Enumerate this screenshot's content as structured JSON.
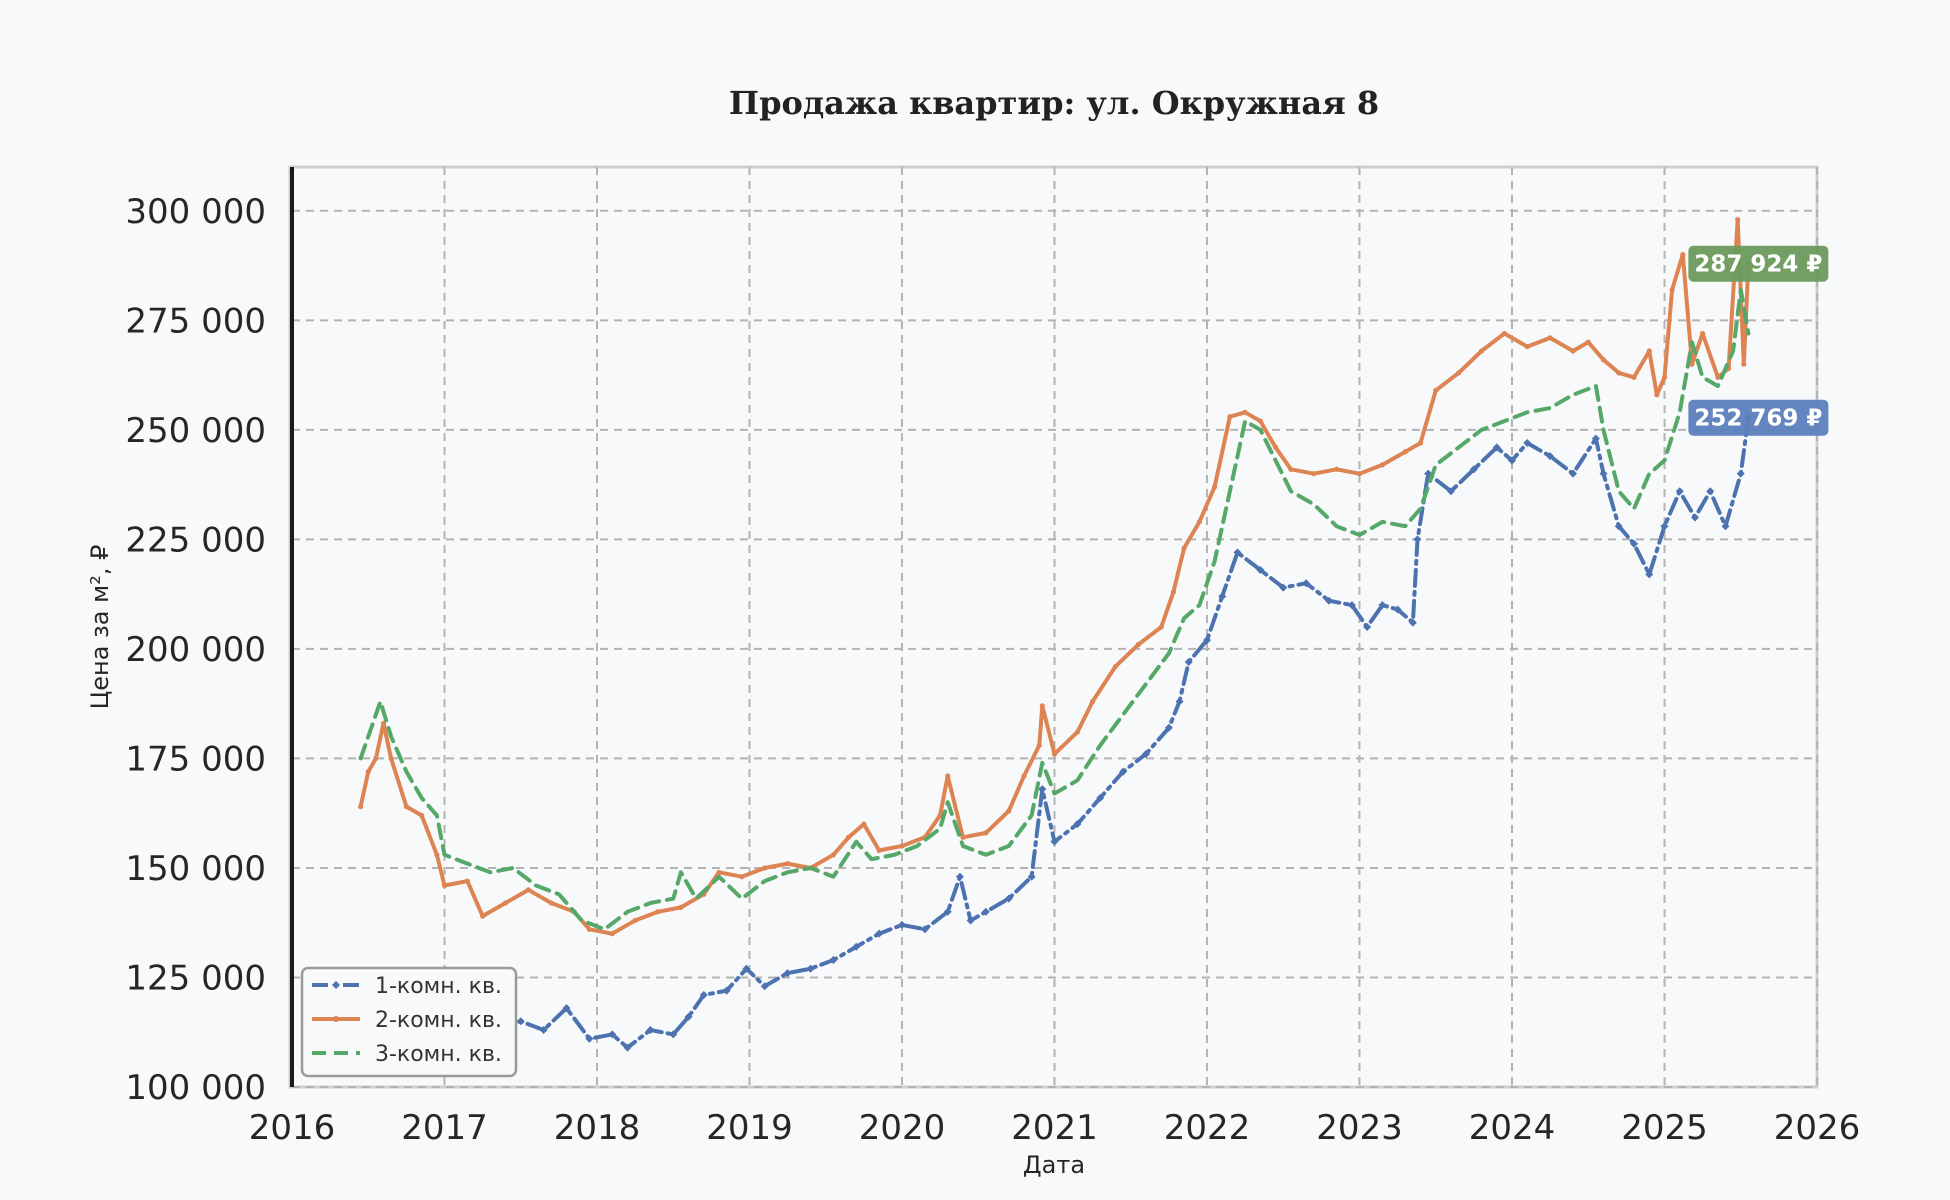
{
  "chart_data": {
    "type": "line",
    "title": "Продажа квартир: ул. Окружная 8",
    "xlabel": "Дата",
    "ylabel": "Цена за м², ₽",
    "xlim": [
      2016,
      2026
    ],
    "ylim": [
      100000,
      310000
    ],
    "x_ticks": [
      "2016",
      "2017",
      "2018",
      "2019",
      "2020",
      "2021",
      "2022",
      "2023",
      "2024",
      "2025",
      "2026"
    ],
    "y_ticks": [
      "100 000",
      "125 000",
      "150 000",
      "175 000",
      "200 000",
      "225 000",
      "250 000",
      "275 000",
      "300 000"
    ],
    "grid": true,
    "legend_position": "bottom-left",
    "series": [
      {
        "name": "1-комн. кв.",
        "color": "#4c72b0",
        "style": "dashdot",
        "marker": "diamond",
        "points": [
          [
            2016.45,
            113000
          ],
          [
            2016.6,
            118000
          ],
          [
            2016.75,
            116000
          ],
          [
            2016.9,
            119000
          ],
          [
            2017.0,
            117000
          ],
          [
            2017.15,
            116000
          ],
          [
            2017.3,
            114000
          ],
          [
            2017.5,
            115000
          ],
          [
            2017.65,
            113000
          ],
          [
            2017.8,
            118000
          ],
          [
            2017.95,
            111000
          ],
          [
            2018.1,
            112000
          ],
          [
            2018.2,
            109000
          ],
          [
            2018.35,
            113000
          ],
          [
            2018.5,
            112000
          ],
          [
            2018.6,
            116000
          ],
          [
            2018.7,
            121000
          ],
          [
            2018.85,
            122000
          ],
          [
            2018.98,
            127000
          ],
          [
            2019.1,
            123000
          ],
          [
            2019.25,
            126000
          ],
          [
            2019.4,
            127000
          ],
          [
            2019.55,
            129000
          ],
          [
            2019.7,
            132000
          ],
          [
            2019.85,
            135000
          ],
          [
            2020.0,
            137000
          ],
          [
            2020.15,
            136000
          ],
          [
            2020.3,
            140000
          ],
          [
            2020.38,
            148000
          ],
          [
            2020.45,
            138000
          ],
          [
            2020.55,
            140000
          ],
          [
            2020.7,
            143000
          ],
          [
            2020.85,
            148000
          ],
          [
            2020.92,
            168000
          ],
          [
            2021.0,
            156000
          ],
          [
            2021.15,
            160000
          ],
          [
            2021.3,
            166000
          ],
          [
            2021.45,
            172000
          ],
          [
            2021.6,
            176000
          ],
          [
            2021.75,
            182000
          ],
          [
            2021.82,
            188000
          ],
          [
            2021.88,
            197000
          ],
          [
            2022.0,
            202000
          ],
          [
            2022.1,
            212000
          ],
          [
            2022.2,
            222000
          ],
          [
            2022.35,
            218000
          ],
          [
            2022.5,
            214000
          ],
          [
            2022.65,
            215000
          ],
          [
            2022.8,
            211000
          ],
          [
            2022.95,
            210000
          ],
          [
            2023.05,
            205000
          ],
          [
            2023.15,
            210000
          ],
          [
            2023.25,
            209000
          ],
          [
            2023.35,
            206000
          ],
          [
            2023.38,
            225000
          ],
          [
            2023.45,
            240000
          ],
          [
            2023.6,
            236000
          ],
          [
            2023.75,
            241000
          ],
          [
            2023.9,
            246000
          ],
          [
            2024.0,
            243000
          ],
          [
            2024.1,
            247000
          ],
          [
            2024.25,
            244000
          ],
          [
            2024.4,
            240000
          ],
          [
            2024.55,
            248000
          ],
          [
            2024.6,
            240000
          ],
          [
            2024.7,
            228000
          ],
          [
            2024.8,
            224000
          ],
          [
            2024.9,
            217000
          ],
          [
            2025.0,
            228000
          ],
          [
            2025.1,
            236000
          ],
          [
            2025.2,
            230000
          ],
          [
            2025.3,
            236000
          ],
          [
            2025.4,
            228000
          ],
          [
            2025.5,
            240000
          ],
          [
            2025.55,
            252769
          ]
        ]
      },
      {
        "name": "2-комн. кв.",
        "color": "#dd8452",
        "style": "solid",
        "marker": "dot",
        "points": [
          [
            2016.45,
            164000
          ],
          [
            2016.5,
            172000
          ],
          [
            2016.55,
            175000
          ],
          [
            2016.6,
            183000
          ],
          [
            2016.65,
            175000
          ],
          [
            2016.75,
            164000
          ],
          [
            2016.85,
            162000
          ],
          [
            2016.95,
            153000
          ],
          [
            2017.0,
            146000
          ],
          [
            2017.15,
            147000
          ],
          [
            2017.25,
            139000
          ],
          [
            2017.4,
            142000
          ],
          [
            2017.55,
            145000
          ],
          [
            2017.7,
            142000
          ],
          [
            2017.85,
            140000
          ],
          [
            2017.95,
            136000
          ],
          [
            2018.1,
            135000
          ],
          [
            2018.25,
            138000
          ],
          [
            2018.4,
            140000
          ],
          [
            2018.55,
            141000
          ],
          [
            2018.7,
            144000
          ],
          [
            2018.8,
            149000
          ],
          [
            2018.95,
            148000
          ],
          [
            2019.1,
            150000
          ],
          [
            2019.25,
            151000
          ],
          [
            2019.4,
            150000
          ],
          [
            2019.55,
            153000
          ],
          [
            2019.65,
            157000
          ],
          [
            2019.75,
            160000
          ],
          [
            2019.85,
            154000
          ],
          [
            2020.0,
            155000
          ],
          [
            2020.15,
            157000
          ],
          [
            2020.25,
            162000
          ],
          [
            2020.3,
            171000
          ],
          [
            2020.4,
            157000
          ],
          [
            2020.55,
            158000
          ],
          [
            2020.7,
            163000
          ],
          [
            2020.8,
            171000
          ],
          [
            2020.9,
            178000
          ],
          [
            2020.92,
            187000
          ],
          [
            2021.0,
            176000
          ],
          [
            2021.15,
            181000
          ],
          [
            2021.25,
            188000
          ],
          [
            2021.4,
            196000
          ],
          [
            2021.55,
            201000
          ],
          [
            2021.7,
            205000
          ],
          [
            2021.78,
            213000
          ],
          [
            2021.85,
            223000
          ],
          [
            2021.95,
            229000
          ],
          [
            2022.05,
            237000
          ],
          [
            2022.15,
            253000
          ],
          [
            2022.25,
            254000
          ],
          [
            2022.35,
            252000
          ],
          [
            2022.45,
            246000
          ],
          [
            2022.55,
            241000
          ],
          [
            2022.7,
            240000
          ],
          [
            2022.85,
            241000
          ],
          [
            2023.0,
            240000
          ],
          [
            2023.15,
            242000
          ],
          [
            2023.3,
            245000
          ],
          [
            2023.4,
            247000
          ],
          [
            2023.5,
            259000
          ],
          [
            2023.65,
            263000
          ],
          [
            2023.8,
            268000
          ],
          [
            2023.95,
            272000
          ],
          [
            2024.1,
            269000
          ],
          [
            2024.25,
            271000
          ],
          [
            2024.4,
            268000
          ],
          [
            2024.5,
            270000
          ],
          [
            2024.6,
            266000
          ],
          [
            2024.7,
            263000
          ],
          [
            2024.8,
            262000
          ],
          [
            2024.9,
            268000
          ],
          [
            2024.95,
            258000
          ],
          [
            2025.0,
            262000
          ],
          [
            2025.05,
            282000
          ],
          [
            2025.12,
            290000
          ],
          [
            2025.18,
            265000
          ],
          [
            2025.25,
            272000
          ],
          [
            2025.35,
            262000
          ],
          [
            2025.42,
            264000
          ],
          [
            2025.48,
            298000
          ],
          [
            2025.52,
            265000
          ],
          [
            2025.55,
            287924
          ]
        ]
      },
      {
        "name": "3-комн. кв.",
        "color": "#55a868",
        "style": "dashed",
        "marker": "none",
        "points": [
          [
            2016.45,
            175000
          ],
          [
            2016.5,
            180000
          ],
          [
            2016.58,
            188000
          ],
          [
            2016.65,
            180000
          ],
          [
            2016.75,
            172000
          ],
          [
            2016.85,
            166000
          ],
          [
            2016.95,
            162000
          ],
          [
            2017.0,
            153000
          ],
          [
            2017.15,
            151000
          ],
          [
            2017.3,
            149000
          ],
          [
            2017.45,
            150000
          ],
          [
            2017.6,
            146000
          ],
          [
            2017.75,
            144000
          ],
          [
            2017.9,
            138000
          ],
          [
            2018.05,
            136000
          ],
          [
            2018.2,
            140000
          ],
          [
            2018.35,
            142000
          ],
          [
            2018.5,
            143000
          ],
          [
            2018.55,
            149000
          ],
          [
            2018.65,
            143000
          ],
          [
            2018.8,
            148000
          ],
          [
            2018.95,
            143000
          ],
          [
            2019.1,
            147000
          ],
          [
            2019.25,
            149000
          ],
          [
            2019.4,
            150000
          ],
          [
            2019.55,
            148000
          ],
          [
            2019.7,
            156000
          ],
          [
            2019.8,
            152000
          ],
          [
            2019.95,
            153000
          ],
          [
            2020.1,
            155000
          ],
          [
            2020.25,
            159000
          ],
          [
            2020.3,
            165000
          ],
          [
            2020.4,
            155000
          ],
          [
            2020.55,
            153000
          ],
          [
            2020.7,
            155000
          ],
          [
            2020.85,
            162000
          ],
          [
            2020.92,
            174000
          ],
          [
            2021.0,
            167000
          ],
          [
            2021.15,
            170000
          ],
          [
            2021.3,
            178000
          ],
          [
            2021.45,
            185000
          ],
          [
            2021.6,
            192000
          ],
          [
            2021.75,
            199000
          ],
          [
            2021.85,
            207000
          ],
          [
            2021.95,
            210000
          ],
          [
            2022.05,
            220000
          ],
          [
            2022.15,
            236000
          ],
          [
            2022.25,
            252000
          ],
          [
            2022.35,
            250000
          ],
          [
            2022.45,
            243000
          ],
          [
            2022.55,
            236000
          ],
          [
            2022.7,
            233000
          ],
          [
            2022.85,
            228000
          ],
          [
            2023.0,
            226000
          ],
          [
            2023.15,
            229000
          ],
          [
            2023.3,
            228000
          ],
          [
            2023.4,
            232000
          ],
          [
            2023.5,
            242000
          ],
          [
            2023.65,
            246000
          ],
          [
            2023.8,
            250000
          ],
          [
            2023.95,
            252000
          ],
          [
            2024.1,
            254000
          ],
          [
            2024.25,
            255000
          ],
          [
            2024.4,
            258000
          ],
          [
            2024.55,
            260000
          ],
          [
            2024.6,
            250000
          ],
          [
            2024.7,
            236000
          ],
          [
            2024.8,
            232000
          ],
          [
            2024.9,
            240000
          ],
          [
            2025.0,
            243000
          ],
          [
            2025.1,
            254000
          ],
          [
            2025.18,
            270000
          ],
          [
            2025.25,
            262000
          ],
          [
            2025.35,
            260000
          ],
          [
            2025.45,
            268000
          ],
          [
            2025.5,
            282000
          ],
          [
            2025.55,
            272000
          ]
        ]
      }
    ],
    "annotations": [
      {
        "text": "287 924 ₽",
        "series": "2-комн. кв.",
        "value": 287924,
        "color": "#6a9a5b"
      },
      {
        "text": "252 769 ₽",
        "series": "1-комн. кв.",
        "value": 252769,
        "color": "#5b7fbd"
      }
    ]
  }
}
